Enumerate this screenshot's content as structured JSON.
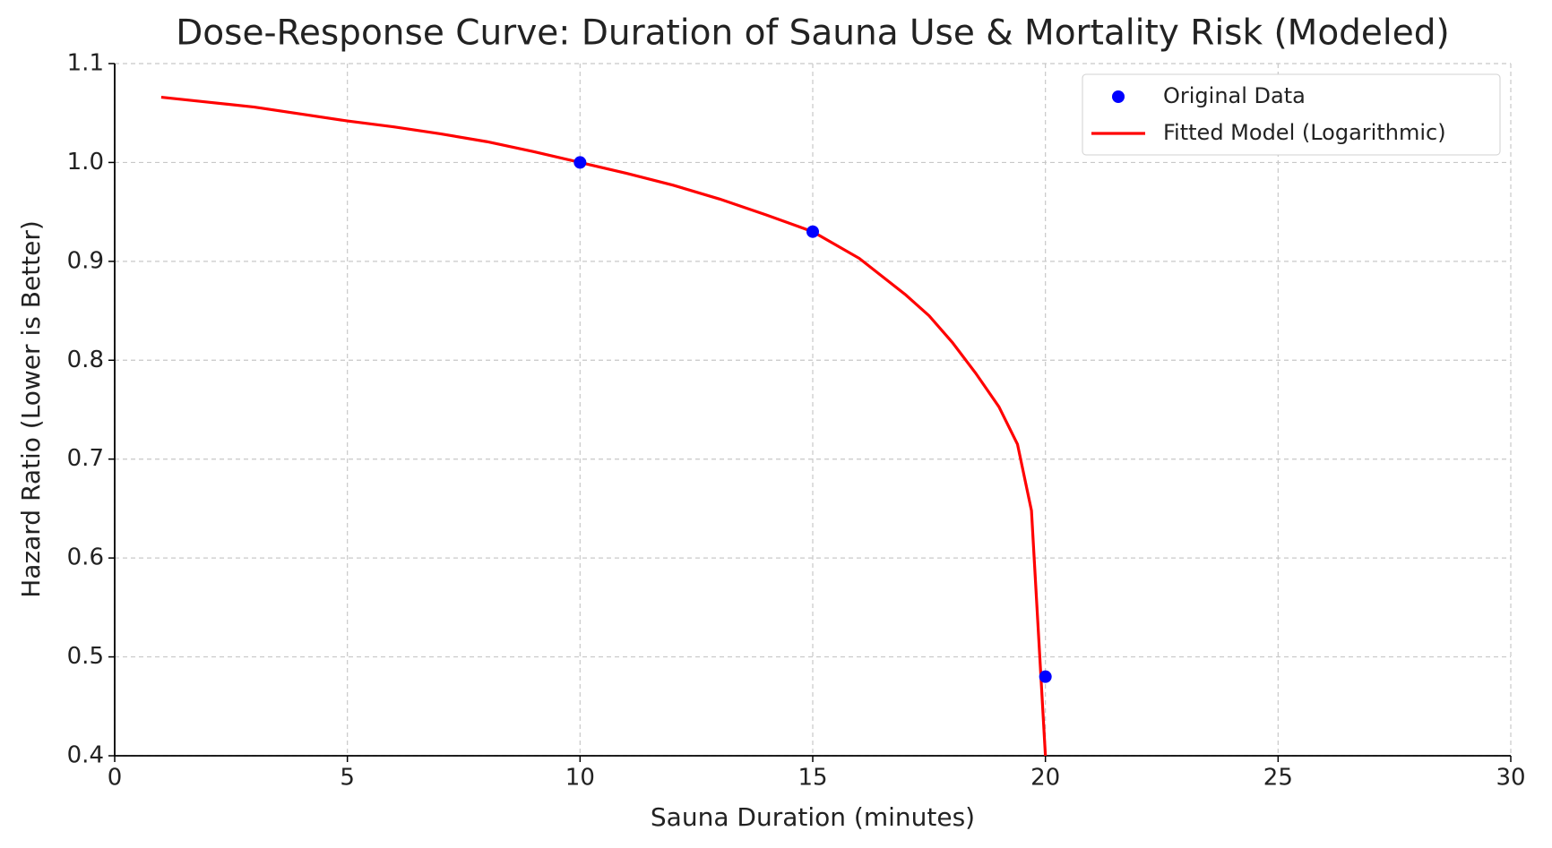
{
  "chart_data": {
    "type": "line",
    "title": "Dose-Response Curve: Duration of Sauna Use & Mortality Risk (Modeled)",
    "x_label": "Sauna Duration (minutes)",
    "y_label": "Hazard Ratio (Lower is Better)",
    "xlim": [
      0,
      30
    ],
    "xticks": [
      0,
      5,
      10,
      15,
      20,
      25,
      30
    ],
    "ylim": [
      0.4,
      1.1
    ],
    "yticks": [
      0.4,
      0.5,
      0.6,
      0.7,
      0.8,
      0.9,
      {
        "value": 1.0,
        "label": "1.0"
      },
      1.1
    ],
    "grid": true,
    "legend": "upper right",
    "series": [
      {
        "name": "Original Data",
        "kind": "scatter",
        "color": "#0000ff",
        "x": [
          10,
          15,
          20
        ],
        "values": [
          1.0,
          0.93,
          0.48
        ]
      },
      {
        "name": "Fitted Model (Logarithmic)",
        "kind": "line",
        "color": "#ff0000",
        "x": [
          1,
          2,
          3,
          4,
          5,
          6,
          7,
          8,
          9,
          10,
          11,
          12,
          13,
          14,
          15,
          16,
          17,
          17.5,
          18,
          18.5,
          19,
          19.4,
          19.7,
          20
        ],
        "values": [
          1.066,
          1.061,
          1.056,
          1.049,
          1.042,
          1.036,
          1.029,
          1.021,
          1.011,
          1.0,
          0.989,
          0.977,
          0.963,
          0.947,
          0.93,
          0.903,
          0.866,
          0.845,
          0.818,
          0.787,
          0.753,
          0.715,
          0.648,
          0.4
        ]
      }
    ]
  }
}
